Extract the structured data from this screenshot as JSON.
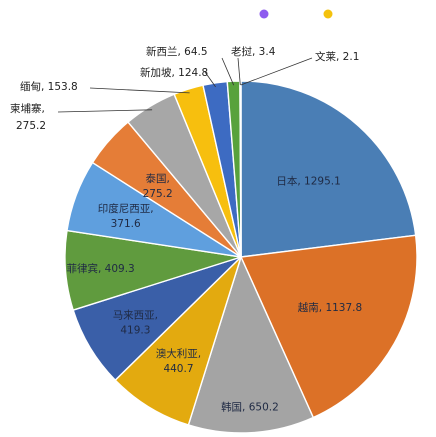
{
  "chart_data": {
    "type": "pie",
    "legend_position": "top-right",
    "legend_markers": [
      {
        "color": "#8e5bef"
      },
      {
        "color": "#f4c20d"
      }
    ],
    "slices": [
      {
        "label": "日本",
        "value": 1295.1,
        "display": "1295.1",
        "color": "#4a7eb5",
        "label_mode": "inside",
        "text": "日本, 1295.1"
      },
      {
        "label": "越南",
        "value": 1137.8,
        "display": "1137.8",
        "color": "#dc7127",
        "label_mode": "inside",
        "text": "越南, 1137.8"
      },
      {
        "label": "韩国",
        "value": 650.2,
        "display": "650.2",
        "color": "#a4a4a4",
        "label_mode": "inside",
        "text": "韩国, 650.2"
      },
      {
        "label": "澳大利亚",
        "value": 440.7,
        "display": "440.7",
        "color": "#e3aa0f",
        "label_mode": "inside",
        "line1": "澳大利亚,",
        "line2": "440.7"
      },
      {
        "label": "马来西亚",
        "value": 419.3,
        "display": "419.3",
        "color": "#3a5fa8",
        "label_mode": "inside",
        "line1": "马来西亚,",
        "line2": "419.3"
      },
      {
        "label": "菲律宾",
        "value": 409.3,
        "display": "409.3",
        "color": "#609b3e",
        "label_mode": "inside",
        "text": "菲律宾, 409.3"
      },
      {
        "label": "印度尼西亚",
        "value": 371.6,
        "display": "371.6",
        "color": "#5f9fde",
        "label_mode": "inside",
        "line1": "印度尼西亚,",
        "line2": "371.6"
      },
      {
        "label": "泰国",
        "value": 275.2,
        "display": "275.2",
        "color": "#e57d37",
        "label_mode": "inside",
        "line1": "泰国,",
        "line2": "275.2"
      },
      {
        "label": "柬埔寨",
        "value": 275.2,
        "display": "275.2",
        "color": "#a7a7a7",
        "label_mode": "outside",
        "line1": "柬埔寨,",
        "line2": "275.2"
      },
      {
        "label": "缅甸",
        "value": 153.8,
        "display": "153.8",
        "color": "#f7bf0e",
        "label_mode": "outside",
        "text": "缅甸, 153.8"
      },
      {
        "label": "新加坡",
        "value": 124.8,
        "display": "124.8",
        "color": "#3d6bc2",
        "label_mode": "outside",
        "text": "新加坡, 124.8"
      },
      {
        "label": "新西兰",
        "value": 64.5,
        "display": "64.5",
        "color": "#58a23c",
        "label_mode": "outside",
        "text": "新西兰, 64.5"
      },
      {
        "label": "老挝",
        "value": 3.4,
        "display": "3.4",
        "color": "#2a4c8c",
        "label_mode": "outside",
        "text": "老挝, 3.4"
      },
      {
        "label": "文莱",
        "value": 2.1,
        "display": "2.1",
        "color": "#9a4f1f",
        "label_mode": "outside",
        "text": "文莱, 2.1"
      }
    ]
  }
}
